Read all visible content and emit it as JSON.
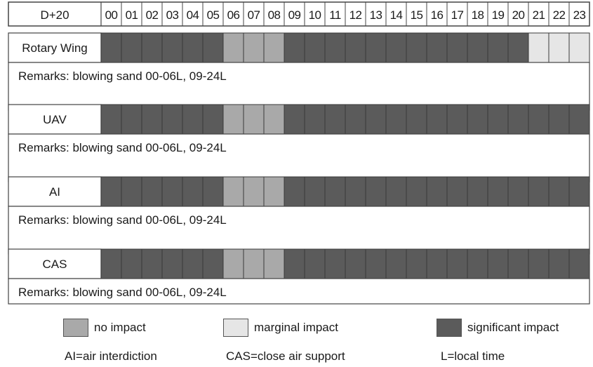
{
  "chart_data": {
    "type": "table",
    "corner_label": "D+20",
    "hours": [
      "00",
      "01",
      "02",
      "03",
      "04",
      "05",
      "06",
      "07",
      "08",
      "09",
      "10",
      "11",
      "12",
      "13",
      "14",
      "15",
      "16",
      "17",
      "18",
      "19",
      "20",
      "21",
      "22",
      "23"
    ],
    "colors": {
      "significant": "#5b5b5b",
      "no_impact": "#a9a9a9",
      "marginal": "#e6e6e6"
    },
    "rows": [
      {
        "label": "Rotary Wing",
        "impact": [
          "significant",
          "significant",
          "significant",
          "significant",
          "significant",
          "significant",
          "no_impact",
          "no_impact",
          "no_impact",
          "significant",
          "significant",
          "significant",
          "significant",
          "significant",
          "significant",
          "significant",
          "significant",
          "significant",
          "significant",
          "significant",
          "significant",
          "marginal",
          "marginal",
          "marginal"
        ],
        "remarks": "Remarks: blowing sand 00-06L, 09-24L"
      },
      {
        "label": "UAV",
        "impact": [
          "significant",
          "significant",
          "significant",
          "significant",
          "significant",
          "significant",
          "no_impact",
          "no_impact",
          "no_impact",
          "significant",
          "significant",
          "significant",
          "significant",
          "significant",
          "significant",
          "significant",
          "significant",
          "significant",
          "significant",
          "significant",
          "significant",
          "significant",
          "significant",
          "significant"
        ],
        "remarks": "Remarks: blowing sand 00-06L, 09-24L"
      },
      {
        "label": "AI",
        "impact": [
          "significant",
          "significant",
          "significant",
          "significant",
          "significant",
          "significant",
          "no_impact",
          "no_impact",
          "no_impact",
          "significant",
          "significant",
          "significant",
          "significant",
          "significant",
          "significant",
          "significant",
          "significant",
          "significant",
          "significant",
          "significant",
          "significant",
          "significant",
          "significant",
          "significant"
        ],
        "remarks": "Remarks: blowing sand 00-06L, 09-24L"
      },
      {
        "label": "CAS",
        "impact": [
          "significant",
          "significant",
          "significant",
          "significant",
          "significant",
          "significant",
          "no_impact",
          "no_impact",
          "no_impact",
          "significant",
          "significant",
          "significant",
          "significant",
          "significant",
          "significant",
          "significant",
          "significant",
          "significant",
          "significant",
          "significant",
          "significant",
          "significant",
          "significant",
          "significant"
        ],
        "remarks": "Remarks: blowing sand 00-06L, 09-24L"
      }
    ],
    "legend": [
      {
        "key": "no_impact",
        "label": "no impact"
      },
      {
        "key": "marginal",
        "label": "marginal impact"
      },
      {
        "key": "significant",
        "label": "significant impact"
      }
    ],
    "abbreviations": [
      "AI=air interdiction",
      "CAS=close air support",
      "L=local time"
    ]
  }
}
